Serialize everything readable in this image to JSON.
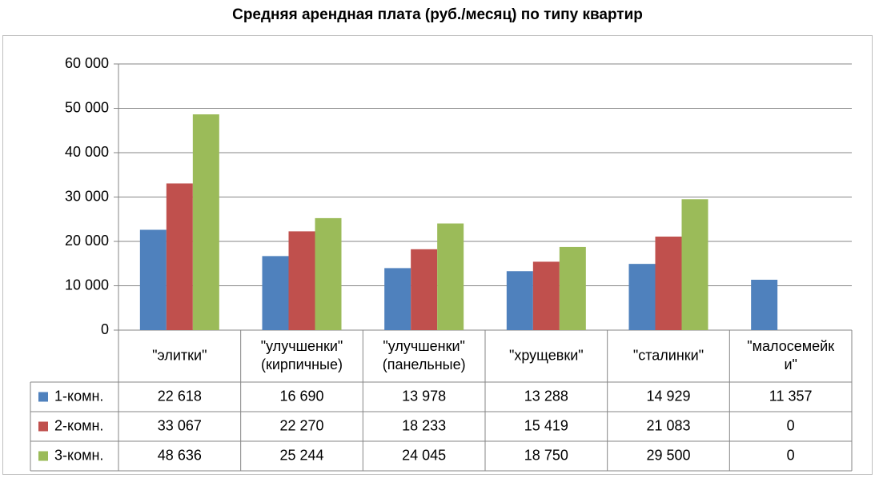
{
  "chart_data": {
    "type": "bar",
    "title": "Средняя арендная плата (руб./месяц) по типу квартир",
    "categories": [
      [
        "\"элитки\""
      ],
      [
        "\"улучшенки\"",
        "(кирпичные)"
      ],
      [
        "\"улучшенки\"",
        "(панельные)"
      ],
      [
        "\"хрущевки\""
      ],
      [
        "\"сталинки\""
      ],
      [
        "\"малосемейк",
        "и\""
      ]
    ],
    "series": [
      {
        "name": "1-комн.",
        "color": "#4f81bd",
        "values": [
          22618,
          16690,
          13978,
          13288,
          14929,
          11357
        ],
        "labels": [
          "22 618",
          "16 690",
          "13 978",
          "13 288",
          "14 929",
          "11 357"
        ]
      },
      {
        "name": "2-комн.",
        "color": "#c0504d",
        "values": [
          33067,
          22270,
          18233,
          15419,
          21083,
          0
        ],
        "labels": [
          "33 067",
          "22 270",
          "18 233",
          "15 419",
          "21 083",
          "0"
        ]
      },
      {
        "name": "3-комн.",
        "color": "#9bbb59",
        "values": [
          48636,
          25244,
          24045,
          18750,
          29500,
          0
        ],
        "labels": [
          "48 636",
          "25 244",
          "24 045",
          "18 750",
          "29 500",
          "0"
        ]
      }
    ],
    "y_ticks": [
      {
        "value": 0,
        "label": "0"
      },
      {
        "value": 10000,
        "label": "10 000"
      },
      {
        "value": 20000,
        "label": "20 000"
      },
      {
        "value": 30000,
        "label": "30 000"
      },
      {
        "value": 40000,
        "label": "40 000"
      },
      {
        "value": 50000,
        "label": "50 000"
      },
      {
        "value": 60000,
        "label": "60 000"
      }
    ],
    "ylim": [
      0,
      60000
    ],
    "grid": true,
    "legend": "data-table"
  }
}
